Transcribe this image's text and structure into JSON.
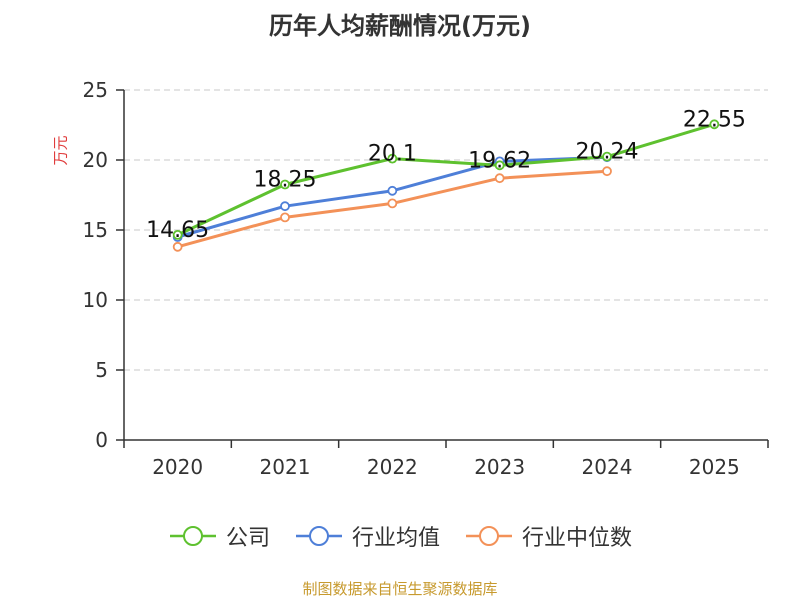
{
  "chart_data": {
    "type": "line",
    "title": "历年人均薪酬情况(万元)",
    "ylabel": "万元",
    "xlabel": "",
    "categories": [
      "2020",
      "2021",
      "2022",
      "2023",
      "2024",
      "2025"
    ],
    "ylim": [
      0,
      25
    ],
    "yticks": [
      0,
      5,
      10,
      15,
      20,
      25
    ],
    "grid": true,
    "legend_position": "bottom",
    "series": [
      {
        "name": "公司",
        "color": "#5ec12f",
        "values": [
          14.65,
          18.25,
          20.1,
          19.62,
          20.24,
          22.55
        ]
      },
      {
        "name": "行业均值",
        "color": "#4e7fd8",
        "values": [
          14.5,
          16.7,
          17.8,
          19.9,
          20.2,
          null
        ]
      },
      {
        "name": "行业中位数",
        "color": "#f39158",
        "values": [
          13.8,
          15.9,
          16.9,
          18.7,
          19.2,
          null
        ]
      }
    ],
    "data_labels": [
      "14.65",
      "18.25",
      "20.1",
      "19.62",
      "20.24",
      "22.55"
    ]
  },
  "source_text": "制图数据来自恒生聚源数据库",
  "colors": {
    "ylabel": "#e03c3c",
    "source": "#c79a2e",
    "axis": "#333333",
    "grid": "#c8c8c8"
  }
}
